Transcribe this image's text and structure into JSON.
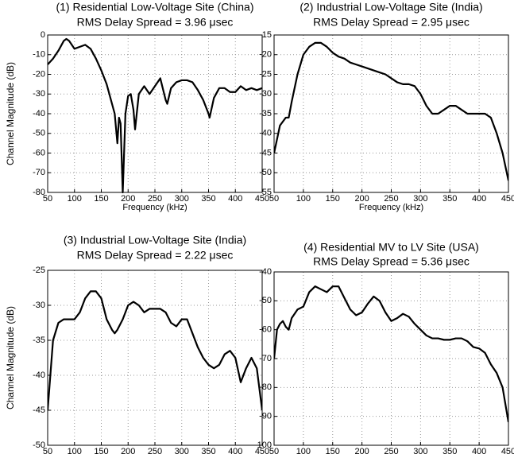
{
  "chart_data": [
    {
      "type": "line",
      "title": "(1) Residential Low-Voltage Site (China)",
      "subtitle": "RMS Delay Spread = 3.96 μsec",
      "xlabel": "Frequency (kHz)",
      "ylabel": "Channel Magnitude (dB)",
      "color": "#000000",
      "grid": true,
      "xlim": [
        50,
        450
      ],
      "xticks": [
        50,
        100,
        150,
        200,
        250,
        300,
        350,
        400,
        450
      ],
      "ylim": [
        -80,
        0
      ],
      "yticks": [
        0,
        -10,
        -20,
        -30,
        -40,
        -50,
        -60,
        -70,
        -80
      ],
      "x": [
        50,
        60,
        70,
        80,
        85,
        90,
        100,
        110,
        120,
        130,
        140,
        150,
        160,
        170,
        175,
        180,
        183,
        186,
        190,
        195,
        200,
        205,
        210,
        213,
        220,
        230,
        240,
        250,
        260,
        270,
        273,
        280,
        290,
        300,
        310,
        320,
        330,
        340,
        350,
        352,
        360,
        370,
        380,
        390,
        400,
        410,
        420,
        430,
        440,
        450
      ],
      "values": [
        -15,
        -12,
        -8,
        -3,
        -2,
        -3,
        -7,
        -6,
        -5,
        -7,
        -12,
        -18,
        -25,
        -35,
        -40,
        -55,
        -42,
        -45,
        -80,
        -40,
        -31,
        -30,
        -38,
        -48,
        -30,
        -26,
        -30,
        -26,
        -22,
        -33,
        -35,
        -27,
        -24,
        -23,
        -23,
        -24,
        -28,
        -33,
        -40,
        -42,
        -32,
        -27,
        -27,
        -29,
        -29,
        -26,
        -28,
        -27,
        -28,
        -27
      ]
    },
    {
      "type": "line",
      "title": "(2) Industrial Low-Voltage Site (India)",
      "subtitle": "RMS Delay Spread = 2.95 μsec",
      "xlabel": "Frequency (kHz)",
      "color": "#000000",
      "grid": true,
      "xlim": [
        50,
        450
      ],
      "xticks": [
        50,
        100,
        150,
        200,
        250,
        300,
        350,
        400,
        450
      ],
      "ylim": [
        -55,
        -15
      ],
      "yticks": [
        -15,
        -20,
        -25,
        -30,
        -35,
        -40,
        -45,
        -50,
        -55
      ],
      "x": [
        50,
        60,
        70,
        75,
        80,
        90,
        100,
        110,
        120,
        130,
        140,
        150,
        160,
        170,
        180,
        190,
        200,
        210,
        220,
        230,
        240,
        250,
        260,
        270,
        280,
        290,
        300,
        310,
        320,
        330,
        340,
        350,
        360,
        370,
        380,
        390,
        400,
        410,
        420,
        430,
        440,
        450
      ],
      "values": [
        -45,
        -38,
        -36,
        -36,
        -32,
        -25,
        -20,
        -18,
        -17,
        -17,
        -18,
        -19.5,
        -20.5,
        -21,
        -22,
        -22.5,
        -23,
        -23.5,
        -24,
        -24.5,
        -25,
        -26,
        -27,
        -27.5,
        -27.5,
        -28,
        -30,
        -33,
        -35,
        -35,
        -34,
        -33,
        -33,
        -34,
        -35,
        -35,
        -35,
        -35,
        -36,
        -40,
        -45,
        -52
      ]
    },
    {
      "type": "line",
      "title": "(3) Industrial Low-Voltage Site (India)",
      "subtitle": "RMS Delay Spread = 2.22 μsec",
      "xlabel": "Frequency (kHz)",
      "ylabel": "Channel Magnitude (dB)",
      "color": "#000000",
      "grid": true,
      "xlim": [
        50,
        450
      ],
      "xticks": [
        50,
        100,
        150,
        200,
        250,
        300,
        350,
        400,
        450
      ],
      "ylim": [
        -50,
        -25
      ],
      "yticks": [
        -25,
        -30,
        -35,
        -40,
        -45,
        -50
      ],
      "x": [
        50,
        60,
        70,
        80,
        90,
        100,
        110,
        120,
        130,
        140,
        150,
        160,
        170,
        175,
        180,
        190,
        200,
        210,
        220,
        230,
        240,
        250,
        260,
        270,
        280,
        290,
        300,
        310,
        320,
        330,
        340,
        350,
        360,
        370,
        380,
        390,
        400,
        410,
        420,
        430,
        440,
        450
      ],
      "values": [
        -45,
        -35,
        -32.5,
        -32,
        -32,
        -32,
        -31,
        -29,
        -28,
        -28,
        -29,
        -32,
        -33.5,
        -34,
        -33.5,
        -32,
        -30,
        -29.5,
        -30,
        -31,
        -30.5,
        -30.5,
        -30.5,
        -31,
        -32.5,
        -33,
        -32,
        -32,
        -34,
        -36,
        -37.5,
        -38.5,
        -39,
        -38.5,
        -37,
        -36.5,
        -37.5,
        -41,
        -39,
        -37.5,
        -39,
        -45
      ]
    },
    {
      "type": "line",
      "title": "(4) Residential MV to LV Site (USA)",
      "subtitle": "RMS Delay Spread = 5.36 μsec",
      "xlabel": "Frequency (kHz)",
      "color": "#000000",
      "grid": true,
      "xlim": [
        50,
        450
      ],
      "xticks": [
        50,
        100,
        150,
        200,
        250,
        300,
        350,
        400,
        450
      ],
      "ylim": [
        -100,
        -40
      ],
      "yticks": [
        -40,
        -50,
        -60,
        -70,
        -80,
        -90,
        -100
      ],
      "x": [
        50,
        55,
        60,
        65,
        70,
        75,
        80,
        90,
        100,
        110,
        120,
        130,
        140,
        150,
        160,
        170,
        180,
        190,
        200,
        210,
        220,
        230,
        240,
        250,
        260,
        270,
        280,
        290,
        300,
        310,
        320,
        330,
        340,
        350,
        360,
        370,
        380,
        390,
        400,
        410,
        420,
        430,
        440,
        450
      ],
      "values": [
        -70,
        -60,
        -58,
        -57,
        -59,
        -60,
        -56,
        -53,
        -52,
        -47,
        -45,
        -46,
        -47,
        -45,
        -45,
        -49,
        -53,
        -55,
        -54,
        -51,
        -48.5,
        -50,
        -54,
        -57,
        -56,
        -54.5,
        -55.5,
        -58,
        -60,
        -62,
        -63,
        -63,
        -63.5,
        -63.5,
        -63,
        -63,
        -64,
        -66,
        -66.5,
        -68,
        -72,
        -75,
        -80,
        -92
      ]
    }
  ]
}
